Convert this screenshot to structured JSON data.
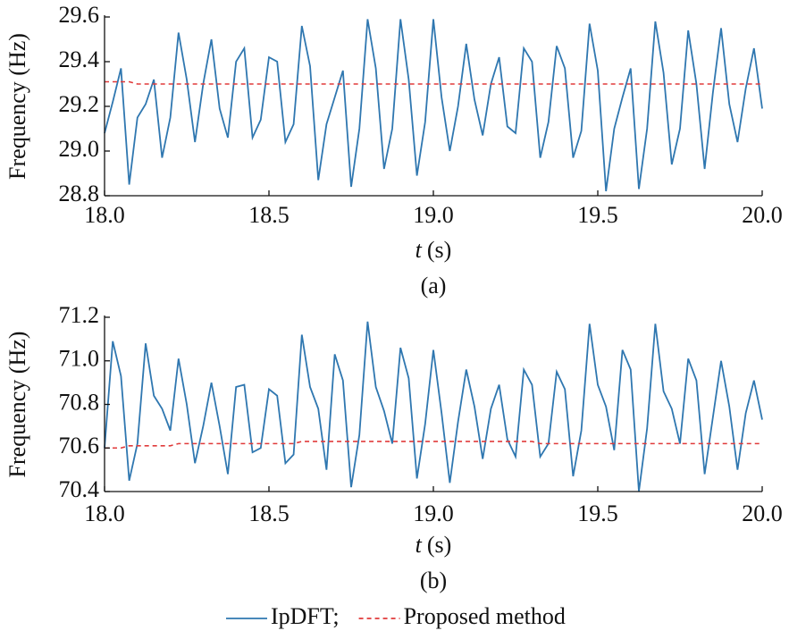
{
  "chart_data": [
    {
      "type": "line",
      "y_label": "Frequency (Hz)",
      "x_label_var": "t",
      "x_label_unit": "(s)",
      "caption": "(a)",
      "legend": "bottom",
      "x": [
        18,
        18.025,
        18.05,
        18.075,
        18.1,
        18.125,
        18.15,
        18.175,
        18.2,
        18.225,
        18.25,
        18.275,
        18.3,
        18.325,
        18.35,
        18.375,
        18.4,
        18.425,
        18.45,
        18.475,
        18.5,
        18.525,
        18.55,
        18.575,
        18.6,
        18.625,
        18.65,
        18.675,
        18.7,
        18.725,
        18.75,
        18.775,
        18.8,
        18.825,
        18.85,
        18.875,
        18.9,
        18.925,
        18.95,
        18.975,
        19,
        19.025,
        19.05,
        19.075,
        19.1,
        19.125,
        19.15,
        19.175,
        19.2,
        19.225,
        19.25,
        19.275,
        19.3,
        19.325,
        19.35,
        19.375,
        19.4,
        19.425,
        19.45,
        19.475,
        19.5,
        19.525,
        19.55,
        19.575,
        19.6,
        19.625,
        19.65,
        19.675,
        19.7,
        19.725,
        19.75,
        19.775,
        19.8,
        19.825,
        19.85,
        19.875,
        19.9,
        19.925,
        19.95,
        19.975,
        20
      ],
      "series": [
        {
          "name": "IpDFT;",
          "color": "#2f77b0",
          "dashed": false,
          "values": [
            29.08,
            29.22,
            29.37,
            28.85,
            29.15,
            29.21,
            29.32,
            28.97,
            29.15,
            29.53,
            29.32,
            29.04,
            29.3,
            29.5,
            29.19,
            29.06,
            29.4,
            29.46,
            29.06,
            29.14,
            29.42,
            29.4,
            29.04,
            29.12,
            29.56,
            29.38,
            28.87,
            29.12,
            29.24,
            29.36,
            28.84,
            29.1,
            29.59,
            29.37,
            28.92,
            29.1,
            29.59,
            29.32,
            28.89,
            29.13,
            29.59,
            29.24,
            29.0,
            29.2,
            29.48,
            29.23,
            29.07,
            29.3,
            29.42,
            29.11,
            29.08,
            29.46,
            29.4,
            28.97,
            29.13,
            29.47,
            29.37,
            28.97,
            29.09,
            29.57,
            29.36,
            28.82,
            29.1,
            29.24,
            29.37,
            28.83,
            29.1,
            29.58,
            29.35,
            28.94,
            29.1,
            29.54,
            29.3,
            28.92,
            29.26,
            29.55,
            29.21,
            29.04,
            29.28,
            29.46,
            29.19
          ]
        },
        {
          "name": "Proposed method",
          "color": "#e03a3a",
          "dashed": true,
          "values": [
            29.31,
            29.31,
            29.31,
            29.31,
            29.3,
            29.3,
            29.3,
            29.3,
            29.3,
            29.3,
            29.3,
            29.3,
            29.3,
            29.3,
            29.3,
            29.3,
            29.3,
            29.3,
            29.3,
            29.3,
            29.3,
            29.3,
            29.3,
            29.3,
            29.3,
            29.3,
            29.3,
            29.3,
            29.3,
            29.3,
            29.3,
            29.3,
            29.3,
            29.3,
            29.3,
            29.3,
            29.3,
            29.3,
            29.3,
            29.3,
            29.3,
            29.3,
            29.3,
            29.3,
            29.3,
            29.3,
            29.3,
            29.3,
            29.3,
            29.3,
            29.3,
            29.3,
            29.3,
            29.3,
            29.3,
            29.3,
            29.3,
            29.3,
            29.3,
            29.3,
            29.3,
            29.3,
            29.3,
            29.3,
            29.3,
            29.3,
            29.3,
            29.3,
            29.3,
            29.3,
            29.3,
            29.3,
            29.3,
            29.3,
            29.3,
            29.3,
            29.3,
            29.3,
            29.3,
            29.3,
            29.3
          ]
        }
      ],
      "xlim": [
        18,
        20
      ],
      "xticks": [
        {
          "value": 18,
          "label": "18.0"
        },
        18.5,
        {
          "value": 19,
          "label": "19.0"
        },
        19.5,
        {
          "value": 20,
          "label": "20.0"
        }
      ],
      "ylim": [
        28.8,
        29.6
      ],
      "yticks": [
        28.8,
        {
          "value": 29,
          "label": "29.0"
        },
        29.2,
        29.4,
        29.6
      ]
    },
    {
      "type": "line",
      "y_label": "Frequency (Hz)",
      "x_label_var": "t",
      "x_label_unit": "(s)",
      "caption": "(b)",
      "x": [
        18,
        18.025,
        18.05,
        18.075,
        18.1,
        18.125,
        18.15,
        18.175,
        18.2,
        18.225,
        18.25,
        18.275,
        18.3,
        18.325,
        18.35,
        18.375,
        18.4,
        18.425,
        18.45,
        18.475,
        18.5,
        18.525,
        18.55,
        18.575,
        18.6,
        18.625,
        18.65,
        18.675,
        18.7,
        18.725,
        18.75,
        18.775,
        18.8,
        18.825,
        18.85,
        18.875,
        18.9,
        18.925,
        18.95,
        18.975,
        19,
        19.025,
        19.05,
        19.075,
        19.1,
        19.125,
        19.15,
        19.175,
        19.2,
        19.225,
        19.25,
        19.275,
        19.3,
        19.325,
        19.35,
        19.375,
        19.4,
        19.425,
        19.45,
        19.475,
        19.5,
        19.525,
        19.55,
        19.575,
        19.6,
        19.625,
        19.65,
        19.675,
        19.7,
        19.725,
        19.75,
        19.775,
        19.8,
        19.825,
        19.85,
        19.875,
        19.9,
        19.925,
        19.95,
        19.975,
        20
      ],
      "series": [
        {
          "color": "#2f77b0",
          "dashed": false,
          "values": [
            70.6,
            71.09,
            70.93,
            70.45,
            70.62,
            71.08,
            70.84,
            70.78,
            70.68,
            71.01,
            70.8,
            70.53,
            70.7,
            70.9,
            70.7,
            70.48,
            70.88,
            70.89,
            70.58,
            70.6,
            70.87,
            70.84,
            70.53,
            70.57,
            71.12,
            70.88,
            70.78,
            70.5,
            71.03,
            70.91,
            70.42,
            70.66,
            71.18,
            70.88,
            70.77,
            70.62,
            71.06,
            70.92,
            70.46,
            70.71,
            71.05,
            70.76,
            70.44,
            70.72,
            70.96,
            70.79,
            70.55,
            70.78,
            70.89,
            70.64,
            70.56,
            70.96,
            70.89,
            70.56,
            70.62,
            70.95,
            70.87,
            70.47,
            70.68,
            71.17,
            70.89,
            70.79,
            70.59,
            71.05,
            70.96,
            70.4,
            70.69,
            71.17,
            70.86,
            70.78,
            70.62,
            71.01,
            70.91,
            70.48,
            70.74,
            71.0,
            70.79,
            70.5,
            70.76,
            70.91,
            70.73
          ]
        },
        {
          "color": "#e03a3a",
          "dashed": true,
          "values": [
            70.6,
            70.6,
            70.6,
            70.61,
            70.61,
            70.61,
            70.61,
            70.61,
            70.61,
            70.62,
            70.62,
            70.62,
            70.62,
            70.62,
            70.62,
            70.62,
            70.62,
            70.62,
            70.62,
            70.62,
            70.62,
            70.62,
            70.62,
            70.62,
            70.63,
            70.63,
            70.63,
            70.63,
            70.63,
            70.63,
            70.63,
            70.63,
            70.63,
            70.63,
            70.63,
            70.63,
            70.63,
            70.63,
            70.63,
            70.63,
            70.63,
            70.63,
            70.63,
            70.63,
            70.63,
            70.63,
            70.63,
            70.63,
            70.63,
            70.63,
            70.63,
            70.63,
            70.63,
            70.62,
            70.62,
            70.62,
            70.62,
            70.62,
            70.62,
            70.62,
            70.62,
            70.62,
            70.62,
            70.62,
            70.62,
            70.62,
            70.62,
            70.62,
            70.62,
            70.62,
            70.62,
            70.62,
            70.62,
            70.62,
            70.62,
            70.62,
            70.62,
            70.62,
            70.62,
            70.62,
            70.62
          ]
        }
      ],
      "xlim": [
        18,
        20
      ],
      "xticks": [
        {
          "value": 18,
          "label": "18.0"
        },
        18.5,
        {
          "value": 19,
          "label": "19.0"
        },
        19.5,
        {
          "value": 20,
          "label": "20.0"
        }
      ],
      "ylim": [
        70.4,
        71.2
      ],
      "yticks": [
        70.4,
        70.6,
        70.8,
        {
          "value": 71,
          "label": "71.0"
        },
        71.2
      ]
    }
  ]
}
